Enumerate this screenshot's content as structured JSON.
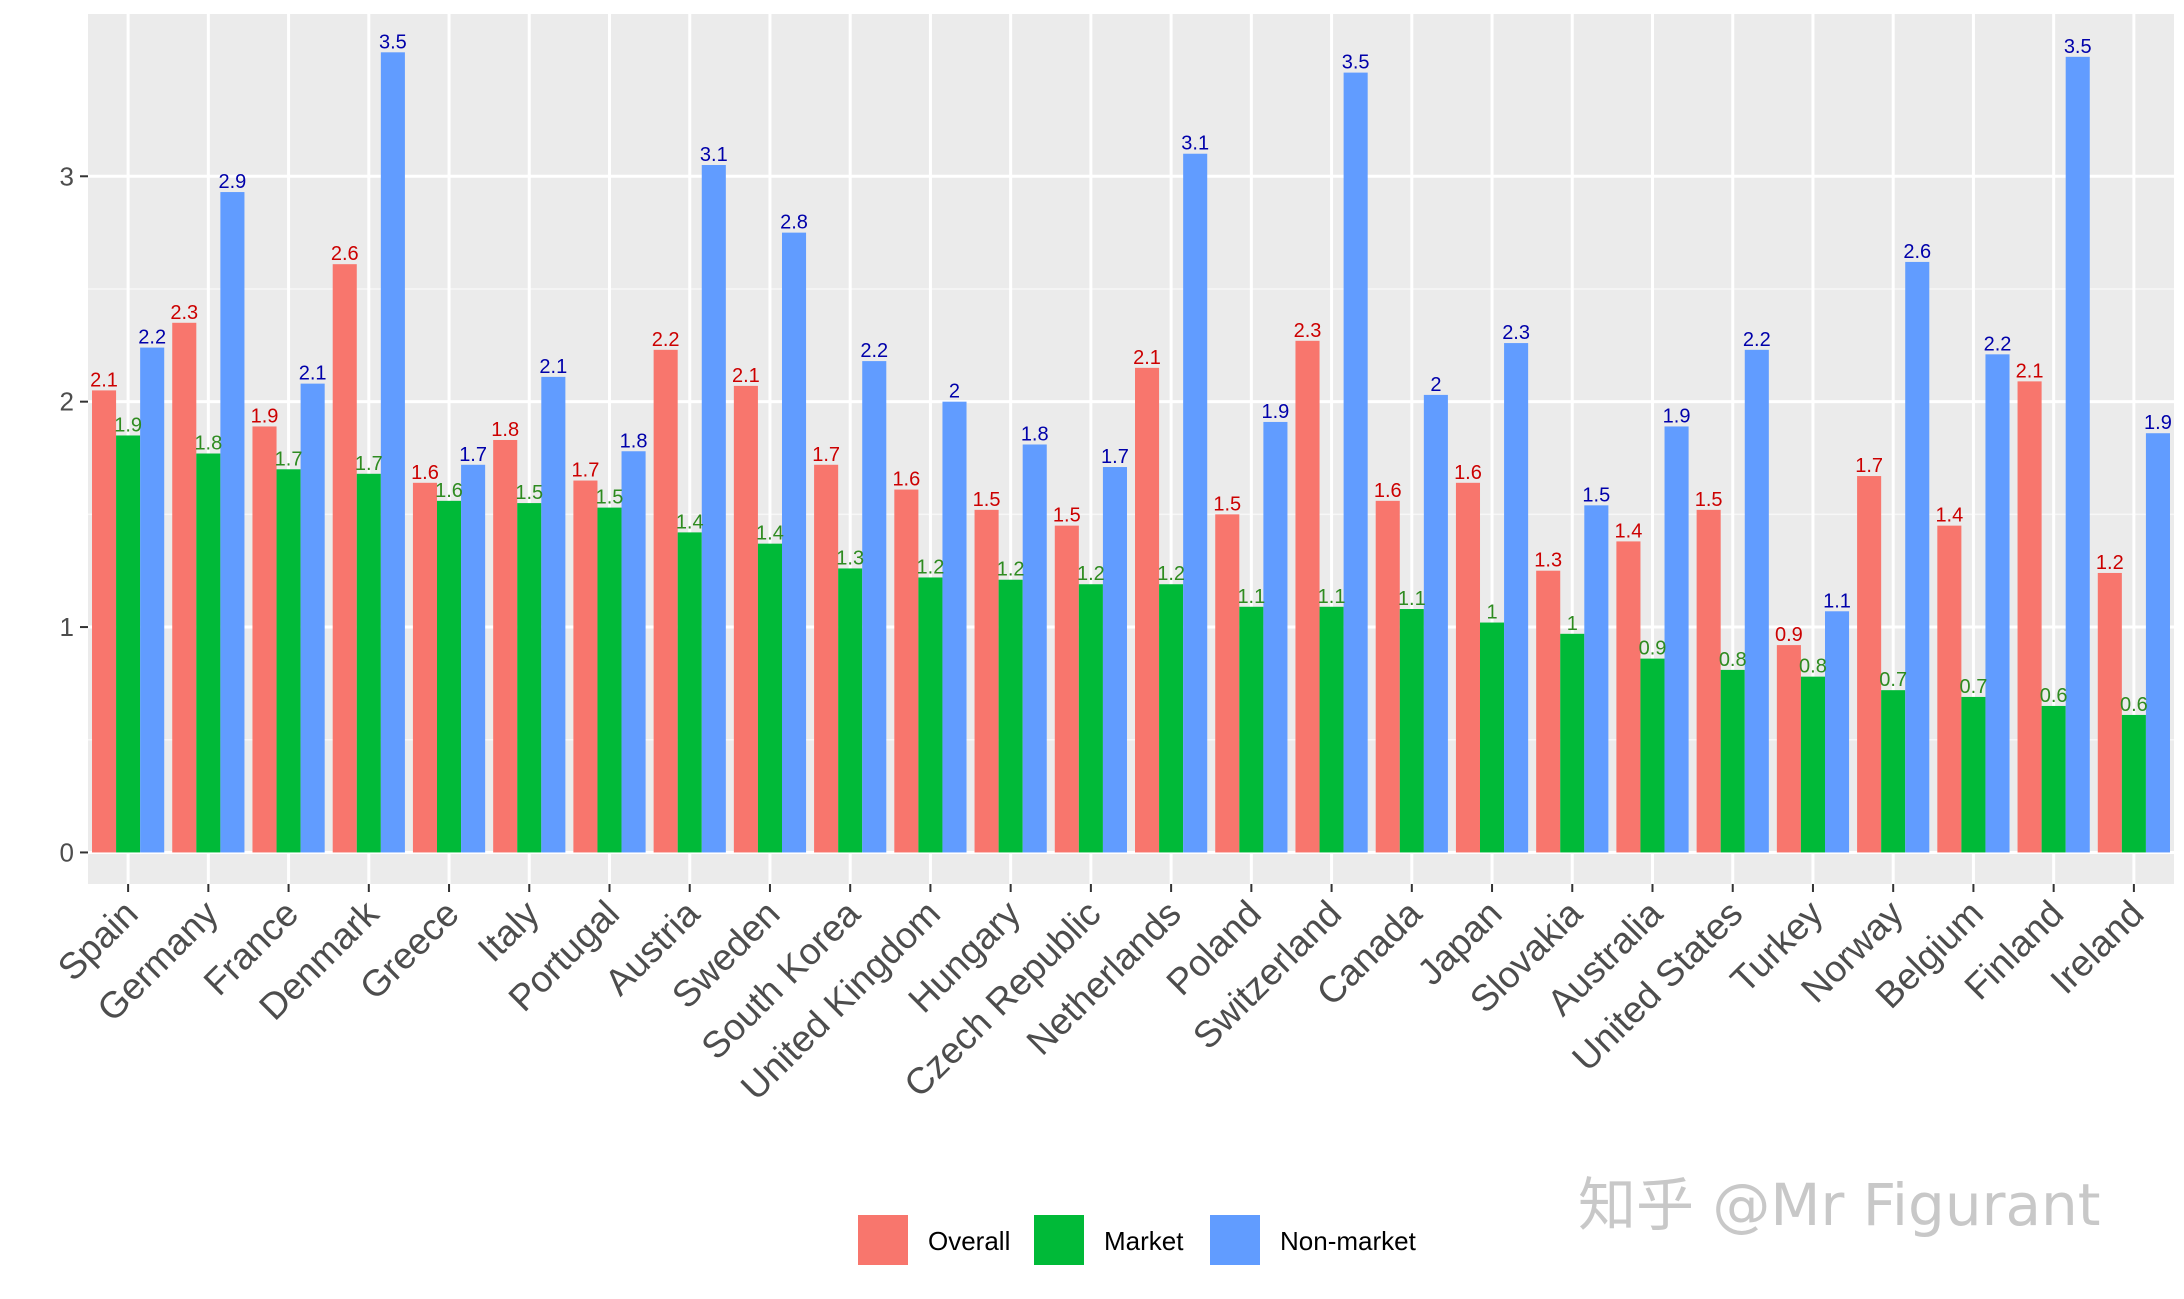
{
  "chart_data": {
    "type": "bar",
    "categories": [
      "Spain",
      "Germany",
      "France",
      "Denmark",
      "Greece",
      "Italy",
      "Portugal",
      "Austria",
      "Sweden",
      "South Korea",
      "United Kingdom",
      "Hungary",
      "Czech Republic",
      "Netherlands",
      "Poland",
      "Switzerland",
      "Canada",
      "Japan",
      "Slovakia",
      "Australia",
      "United States",
      "Turkey",
      "Norway",
      "Belgium",
      "Finland",
      "Ireland"
    ],
    "series": [
      {
        "name": "Overall",
        "color": "#F8766D",
        "label_color": "#CC0000",
        "values": [
          2.05,
          2.35,
          1.89,
          2.61,
          1.64,
          1.83,
          1.65,
          2.23,
          2.07,
          1.72,
          1.61,
          1.52,
          1.45,
          2.15,
          1.5,
          2.27,
          1.56,
          1.64,
          1.25,
          1.38,
          1.52,
          0.92,
          1.67,
          1.45,
          2.09,
          1.24
        ],
        "labels": [
          "2.1",
          "2.3",
          "1.9",
          "2.6",
          "1.6",
          "1.8",
          "1.7",
          "2.2",
          "2.1",
          "1.7",
          "1.6",
          "1.5",
          "1.5",
          "2.1",
          "1.5",
          "2.3",
          "1.6",
          "1.6",
          "1.3",
          "1.4",
          "1.5",
          "0.9",
          "1.7",
          "1.4",
          "2.1",
          "1.2"
        ]
      },
      {
        "name": "Market",
        "color": "#00BA38",
        "label_color": "#2E8B20",
        "values": [
          1.85,
          1.77,
          1.7,
          1.68,
          1.56,
          1.55,
          1.53,
          1.42,
          1.37,
          1.26,
          1.22,
          1.21,
          1.19,
          1.19,
          1.09,
          1.09,
          1.08,
          1.02,
          0.97,
          0.86,
          0.81,
          0.78,
          0.72,
          0.69,
          0.65,
          0.61
        ],
        "labels": [
          "1.9",
          "1.8",
          "1.7",
          "1.7",
          "1.6",
          "1.5",
          "1.5",
          "1.4",
          "1.4",
          "1.3",
          "1.2",
          "1.2",
          "1.2",
          "1.2",
          "1.1",
          "1.1",
          "1.1",
          "1",
          "1",
          "0.9",
          "0.8",
          "0.8",
          "0.7",
          "0.7",
          "0.6",
          "0.6"
        ]
      },
      {
        "name": "Non-market",
        "color": "#619CFF",
        "label_color": "#0000AA",
        "values": [
          2.24,
          2.93,
          2.08,
          3.55,
          1.72,
          2.11,
          1.78,
          3.05,
          2.75,
          2.18,
          2.0,
          1.81,
          1.71,
          3.1,
          1.91,
          3.46,
          2.03,
          2.26,
          1.54,
          1.89,
          2.23,
          1.07,
          2.62,
          2.21,
          3.53,
          1.86
        ],
        "labels": [
          "2.2",
          "2.9",
          "2.1",
          "3.5",
          "1.7",
          "2.1",
          "1.8",
          "3.1",
          "2.8",
          "2.2",
          "2",
          "1.8",
          "1.7",
          "3.1",
          "1.9",
          "3.5",
          "2",
          "2.3",
          "1.5",
          "1.9",
          "2.2",
          "1.1",
          "2.6",
          "2.2",
          "3.5",
          "1.9"
        ]
      }
    ],
    "ylim": [
      -0.14,
      3.72
    ],
    "y_ticks": [
      0,
      1,
      2,
      3
    ],
    "y_tick_labels": [
      "0",
      "1",
      "2",
      "3"
    ],
    "grid": true,
    "legend_position": "bottom",
    "title": "",
    "xlabel": "",
    "ylabel": ""
  },
  "watermark": {
    "text": "知乎 @Mr Figurant"
  }
}
